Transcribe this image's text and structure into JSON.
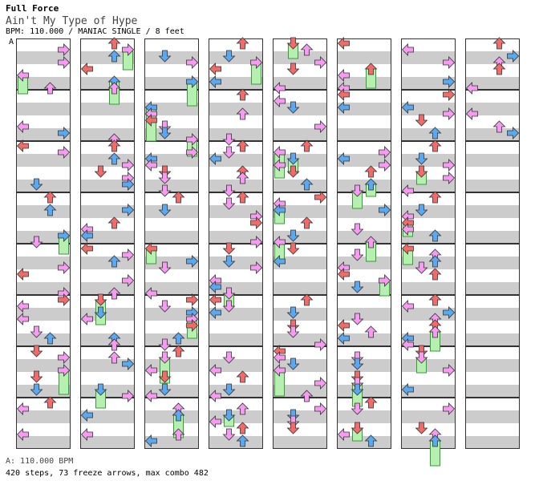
{
  "header": {
    "title": "Full Force",
    "song": "Ain't My Type of Hype",
    "meta": "BPM: 110.000 / MANIAC SINGLE / 8 feet"
  },
  "marker": "A",
  "footer": {
    "bpm": "A: 110.000 BPM",
    "stats": "420 steps, 73 freeze arrows, max combo 482"
  },
  "colors": {
    "red": "#f26b6b",
    "blue": "#5aa8f0",
    "pink": "#f59cf0",
    "green": "#b6f0b0",
    "stripe": "#cccccc",
    "border": "#333333"
  },
  "chart_data": {
    "type": "step-chart",
    "columns": 8,
    "measures_per_column": 8,
    "lanes": [
      "left",
      "down",
      "up",
      "right"
    ]
  }
}
